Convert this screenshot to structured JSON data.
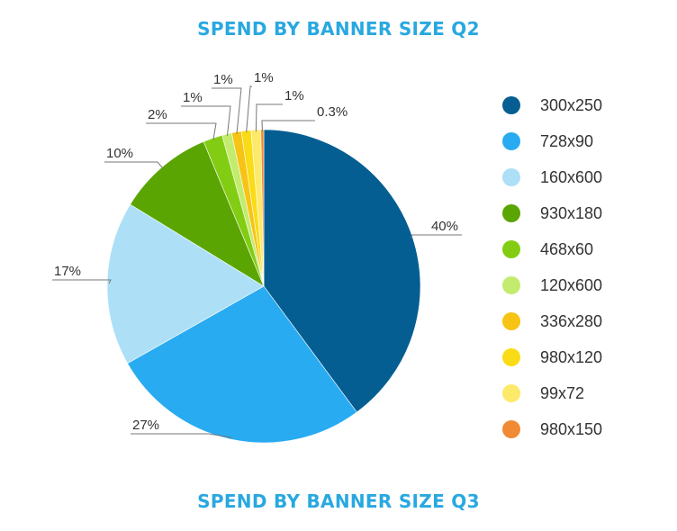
{
  "titles": {
    "top": "SPEND BY BANNER SIZE Q2",
    "bottom": "SPEND BY BANNER SIZE Q3"
  },
  "colors": {
    "title": "#29a8e0",
    "label": "#333333",
    "leader": "#777777"
  },
  "chart_data": {
    "type": "pie",
    "title": "SPEND BY BANNER SIZE Q2",
    "legend_position": "right",
    "slices": [
      {
        "name": "300x250",
        "value": 40,
        "label": "40%",
        "color": "#045e92"
      },
      {
        "name": "728x90",
        "value": 27,
        "label": "27%",
        "color": "#29abf2"
      },
      {
        "name": "160x600",
        "value": 17,
        "label": "17%",
        "color": "#ade0f7"
      },
      {
        "name": "930x180",
        "value": 10,
        "label": "10%",
        "color": "#5aa502"
      },
      {
        "name": "468x60",
        "value": 2,
        "label": "2%",
        "color": "#82cd13"
      },
      {
        "name": "120x600",
        "value": 1,
        "label": "1%",
        "color": "#c3eb6e"
      },
      {
        "name": "336x280",
        "value": 1,
        "label": "1%",
        "color": "#f7c314"
      },
      {
        "name": "980x120",
        "value": 1,
        "label": "1%",
        "color": "#f9dc16"
      },
      {
        "name": "99x72",
        "value": 1,
        "label": "1%",
        "color": "#fde96a"
      },
      {
        "name": "980x150",
        "value": 0.3,
        "label": "0.3%",
        "color": "#f08a34"
      }
    ]
  }
}
